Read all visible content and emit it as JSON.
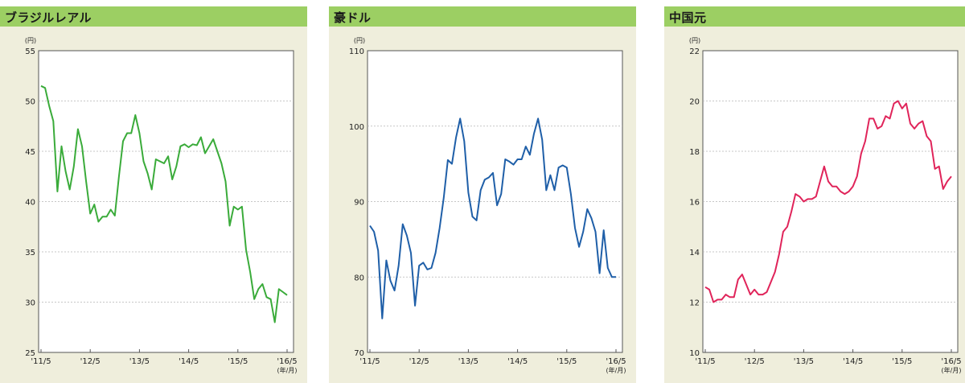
{
  "colors": {
    "header": "#9ccf63",
    "panel_bg": "#efeedc"
  },
  "chart_data": [
    {
      "type": "line",
      "title": "ブラジルレアル",
      "y_unit": "(円)",
      "x_unit": "(年/月)",
      "ylim": [
        25,
        55
      ],
      "y_ticks": [
        25,
        30,
        35,
        40,
        45,
        50,
        55
      ],
      "x_ticks": [
        "'11/5",
        "'12/5",
        "'13/5",
        "'14/5",
        "'15/5",
        "'16/5"
      ],
      "grid": "horizontal dashed",
      "color": "#3aab3a",
      "x": [
        "'11/5",
        "'11/6",
        "'11/7",
        "'11/8",
        "'11/9",
        "'11/10",
        "'11/11",
        "'11/12",
        "'12/1",
        "'12/2",
        "'12/3",
        "'12/4",
        "'12/5",
        "'12/6",
        "'12/7",
        "'12/8",
        "'12/9",
        "'12/10",
        "'12/11",
        "'12/12",
        "'13/1",
        "'13/2",
        "'13/3",
        "'13/4",
        "'13/5",
        "'13/6",
        "'13/7",
        "'13/8",
        "'13/9",
        "'13/10",
        "'13/11",
        "'13/12",
        "'14/1",
        "'14/2",
        "'14/3",
        "'14/4",
        "'14/5",
        "'14/6",
        "'14/7",
        "'14/8",
        "'14/9",
        "'14/10",
        "'14/11",
        "'14/12",
        "'15/1",
        "'15/2",
        "'15/3",
        "'15/4",
        "'15/5",
        "'15/6",
        "'15/7",
        "'15/8",
        "'15/9",
        "'15/10",
        "'15/11",
        "'15/12",
        "'16/1",
        "'16/2",
        "'16/3",
        "'16/4",
        "'16/5"
      ],
      "values": [
        51.5,
        51.3,
        49.5,
        48.0,
        41.0,
        45.5,
        43.0,
        41.2,
        43.5,
        47.2,
        45.5,
        42.0,
        38.8,
        39.7,
        38.0,
        38.5,
        38.5,
        39.2,
        38.6,
        42.5,
        46.0,
        46.8,
        46.8,
        48.6,
        46.8,
        44.0,
        42.8,
        41.2,
        44.2,
        44.0,
        43.8,
        44.5,
        42.2,
        43.5,
        45.5,
        45.7,
        45.4,
        45.7,
        45.6,
        46.4,
        44.8,
        45.5,
        46.2,
        45.0,
        43.8,
        42.0,
        37.6,
        39.5,
        39.2,
        39.5,
        35.2,
        33.0,
        30.3,
        31.3,
        31.8,
        30.5,
        30.3,
        28.0,
        31.3,
        31.0,
        30.7
      ]
    },
    {
      "type": "line",
      "title": "豪ドル",
      "y_unit": "(円)",
      "x_unit": "(年/月)",
      "ylim": [
        70,
        110
      ],
      "y_ticks": [
        70,
        80,
        90,
        100,
        110
      ],
      "x_ticks": [
        "'11/5",
        "'12/5",
        "'13/5",
        "'14/5",
        "'15/5",
        "'16/5"
      ],
      "grid": "horizontal dashed",
      "color": "#1f5fa8",
      "x": [
        "'11/5",
        "'11/6",
        "'11/7",
        "'11/8",
        "'11/9",
        "'11/10",
        "'11/11",
        "'11/12",
        "'12/1",
        "'12/2",
        "'12/3",
        "'12/4",
        "'12/5",
        "'12/6",
        "'12/7",
        "'12/8",
        "'12/9",
        "'12/10",
        "'12/11",
        "'12/12",
        "'13/1",
        "'13/2",
        "'13/3",
        "'13/4",
        "'13/5",
        "'13/6",
        "'13/7",
        "'13/8",
        "'13/9",
        "'13/10",
        "'13/11",
        "'13/12",
        "'14/1",
        "'14/2",
        "'14/3",
        "'14/4",
        "'14/5",
        "'14/6",
        "'14/7",
        "'14/8",
        "'14/9",
        "'14/10",
        "'14/11",
        "'14/12",
        "'15/1",
        "'15/2",
        "'15/3",
        "'15/4",
        "'15/5",
        "'15/6",
        "'15/7",
        "'15/8",
        "'15/9",
        "'15/10",
        "'15/11",
        "'15/12",
        "'16/1",
        "'16/2",
        "'16/3",
        "'16/4",
        "'16/5"
      ],
      "values": [
        86.8,
        86.0,
        83.5,
        74.5,
        82.2,
        79.5,
        78.2,
        81.5,
        87.0,
        85.5,
        83.2,
        76.2,
        81.5,
        81.9,
        81.0,
        81.2,
        83.2,
        86.5,
        90.5,
        95.5,
        95.0,
        98.5,
        101.0,
        98.0,
        91.2,
        88.0,
        87.5,
        91.5,
        92.9,
        93.2,
        93.8,
        89.5,
        91.0,
        95.6,
        95.3,
        94.9,
        95.6,
        95.6,
        97.3,
        96.2,
        99.0,
        101.0,
        98.2,
        91.5,
        93.5,
        91.5,
        94.5,
        94.8,
        94.5,
        91.0,
        86.5,
        84.0,
        86.0,
        89.0,
        87.8,
        86.0,
        80.5,
        86.2,
        81.2,
        80.0,
        80.0
      ]
    },
    {
      "type": "line",
      "title": "中国元",
      "y_unit": "(円)",
      "x_unit": "(年/月)",
      "ylim": [
        10,
        22
      ],
      "y_ticks": [
        10,
        12,
        14,
        16,
        18,
        20,
        22
      ],
      "x_ticks": [
        "'11/5",
        "'12/5",
        "'13/5",
        "'14/5",
        "'15/5",
        "'16/5"
      ],
      "grid": "horizontal dashed",
      "color": "#e0245a",
      "x": [
        "'11/5",
        "'11/6",
        "'11/7",
        "'11/8",
        "'11/9",
        "'11/10",
        "'11/11",
        "'11/12",
        "'12/1",
        "'12/2",
        "'12/3",
        "'12/4",
        "'12/5",
        "'12/6",
        "'12/7",
        "'12/8",
        "'12/9",
        "'12/10",
        "'12/11",
        "'12/12",
        "'13/1",
        "'13/2",
        "'13/3",
        "'13/4",
        "'13/5",
        "'13/6",
        "'13/7",
        "'13/8",
        "'13/9",
        "'13/10",
        "'13/11",
        "'13/12",
        "'14/1",
        "'14/2",
        "'14/3",
        "'14/4",
        "'14/5",
        "'14/6",
        "'14/7",
        "'14/8",
        "'14/9",
        "'14/10",
        "'14/11",
        "'14/12",
        "'15/1",
        "'15/2",
        "'15/3",
        "'15/4",
        "'15/5",
        "'15/6",
        "'15/7",
        "'15/8",
        "'15/9",
        "'15/10",
        "'15/11",
        "'15/12",
        "'16/1",
        "'16/2",
        "'16/3",
        "'16/4",
        "'16/5"
      ],
      "values": [
        12.6,
        12.5,
        12.0,
        12.1,
        12.1,
        12.3,
        12.2,
        12.2,
        12.9,
        13.1,
        12.7,
        12.3,
        12.5,
        12.3,
        12.3,
        12.4,
        12.8,
        13.2,
        13.9,
        14.8,
        15.0,
        15.6,
        16.3,
        16.2,
        16.0,
        16.1,
        16.1,
        16.2,
        16.8,
        17.4,
        16.8,
        16.6,
        16.6,
        16.4,
        16.3,
        16.4,
        16.6,
        17.0,
        17.9,
        18.4,
        19.3,
        19.3,
        18.9,
        19.0,
        19.4,
        19.3,
        19.9,
        20.0,
        19.7,
        19.9,
        19.1,
        18.9,
        19.1,
        19.2,
        18.6,
        18.4,
        17.3,
        17.4,
        16.5,
        16.8,
        17.0
      ]
    }
  ]
}
